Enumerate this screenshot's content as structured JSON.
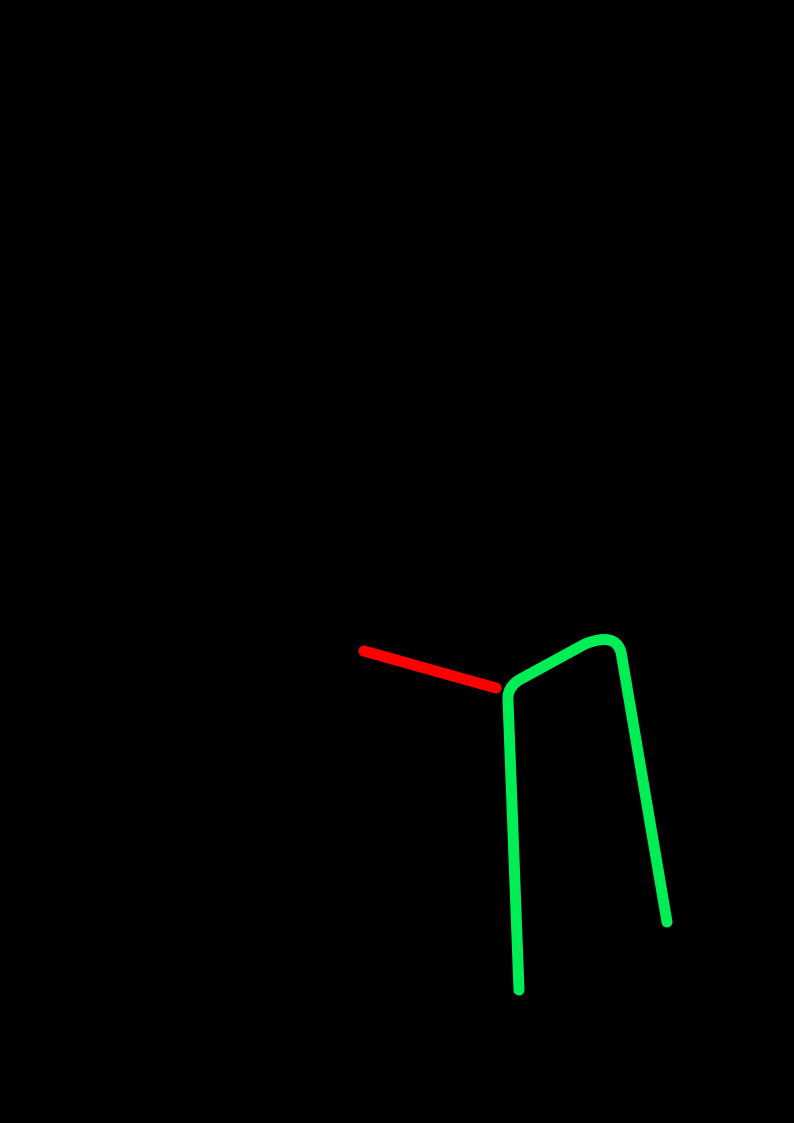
{
  "background_color": "#000000",
  "strokes": [
    {
      "name": "red-stroke",
      "color": "#ff0000"
    },
    {
      "name": "green-stroke",
      "color": "#00ee55"
    }
  ]
}
